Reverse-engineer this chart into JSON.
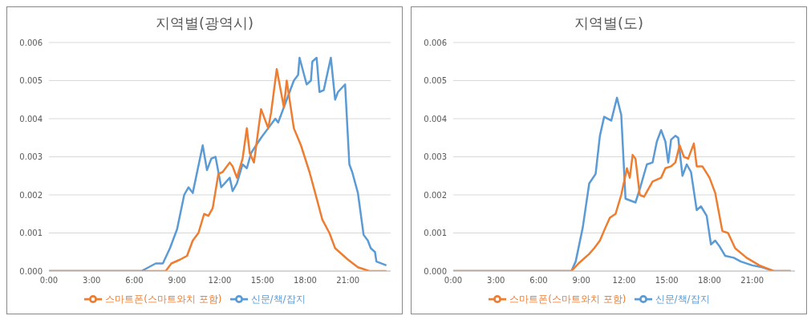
{
  "chart_data": [
    {
      "type": "line",
      "title": "지역별(광역시)",
      "legend": "bottom",
      "grid": "y",
      "marker": "none",
      "line_style": "solid",
      "xlim": [
        0,
        24
      ],
      "xticks": [
        {
          "value": 0,
          "label": "0:00"
        },
        {
          "value": 3,
          "label": "3:00"
        },
        {
          "value": 6,
          "label": "6:00"
        },
        {
          "value": 9,
          "label": "9:00"
        },
        {
          "value": 12,
          "label": "12:00"
        },
        {
          "value": 15,
          "label": "15:00"
        },
        {
          "value": 18,
          "label": "18:00"
        },
        {
          "value": 21,
          "label": "21:00"
        }
      ],
      "ylim": [
        0,
        0.006
      ],
      "yticks": [
        {
          "value": 0,
          "label": "0.000"
        },
        {
          "value": 0.001,
          "label": "0.001"
        },
        {
          "value": 0.002,
          "label": "0.002"
        },
        {
          "value": 0.003,
          "label": "0.003"
        },
        {
          "value": 0.004,
          "label": "0.004"
        },
        {
          "value": 0.005,
          "label": "0.005"
        },
        {
          "value": 0.006,
          "label": "0.006"
        }
      ],
      "series": [
        {
          "name": "신문/책/잡지",
          "color": "#5b9bd5",
          "x": [
            0,
            6.5,
            7,
            7.5,
            8,
            8.5,
            9,
            9.5,
            9.8,
            10.1,
            10.8,
            11.1,
            11.4,
            11.7,
            12.1,
            12.7,
            12.9,
            13.2,
            13.6,
            13.9,
            14.2,
            14.9,
            15.4,
            15.9,
            16.1,
            16.7,
            17.2,
            17.5,
            17.6,
            18.1,
            18.4,
            18.5,
            18.8,
            19,
            19.3,
            19.8,
            20.1,
            20.3,
            20.8,
            21.1,
            21.3,
            21.7,
            22.1,
            22.4,
            22.6,
            22.9,
            23,
            23.7
          ],
          "values": [
            0,
            0,
            0.0001,
            0.0002,
            0.0002,
            0.0006,
            0.0011,
            0.002,
            0.0022,
            0.00205,
            0.0033,
            0.00265,
            0.00295,
            0.003,
            0.0022,
            0.00245,
            0.0021,
            0.0023,
            0.0028,
            0.0027,
            0.0031,
            0.0035,
            0.00375,
            0.004,
            0.0039,
            0.0045,
            0.005,
            0.00515,
            0.0056,
            0.0049,
            0.005,
            0.0055,
            0.0056,
            0.0047,
            0.00475,
            0.0056,
            0.0045,
            0.0047,
            0.0049,
            0.0028,
            0.0026,
            0.00205,
            0.00095,
            0.0008,
            0.0006,
            0.0005,
            0.00025,
            0.00015
          ]
        },
        {
          "name": "스마트폰(스마트와치 포함)",
          "color": "#ed7d31",
          "x": [
            0,
            7.4,
            8.2,
            8.6,
            9.2,
            9.7,
            10.1,
            10.5,
            10.9,
            11.2,
            11.5,
            11.9,
            12.2,
            12.7,
            12.9,
            13.2,
            13.6,
            13.9,
            14.1,
            14.4,
            14.9,
            15.4,
            15.6,
            16,
            16.5,
            16.7,
            17.2,
            17.7,
            18.3,
            18.7,
            19.2,
            19.7,
            20.1,
            21,
            21.7,
            22.5,
            23.7
          ],
          "values": [
            0,
            0,
            0,
            0.0002,
            0.0003,
            0.0004,
            0.0008,
            0.001,
            0.0015,
            0.00145,
            0.00165,
            0.00255,
            0.0026,
            0.00285,
            0.00275,
            0.00245,
            0.00295,
            0.00375,
            0.0031,
            0.00285,
            0.00425,
            0.00375,
            0.00415,
            0.0053,
            0.0043,
            0.005,
            0.00375,
            0.0033,
            0.0026,
            0.00205,
            0.00135,
            0.001,
            0.0006,
            0.0003,
            0.0001,
            0,
            0
          ]
        }
      ]
    },
    {
      "type": "line",
      "title": "지역별(도)",
      "legend": "bottom",
      "grid": "y",
      "marker": "none",
      "line_style": "solid",
      "xlim": [
        0,
        24
      ],
      "xticks": [
        {
          "value": 0,
          "label": "0:00"
        },
        {
          "value": 3,
          "label": "3:00"
        },
        {
          "value": 6,
          "label": "6:00"
        },
        {
          "value": 9,
          "label": "9:00"
        },
        {
          "value": 12,
          "label": "12:00"
        },
        {
          "value": 15,
          "label": "15:00"
        },
        {
          "value": 18,
          "label": "18:00"
        },
        {
          "value": 21,
          "label": "21:00"
        }
      ],
      "ylim": [
        0,
        0.006
      ],
      "yticks": [
        {
          "value": 0,
          "label": "0.000"
        },
        {
          "value": 0.001,
          "label": "0.001"
        },
        {
          "value": 0.002,
          "label": "0.002"
        },
        {
          "value": 0.003,
          "label": "0.003"
        },
        {
          "value": 0.004,
          "label": "0.004"
        },
        {
          "value": 0.005,
          "label": "0.005"
        },
        {
          "value": 0.006,
          "label": "0.006"
        }
      ],
      "series": [
        {
          "name": "신문/책/잡지",
          "color": "#5b9bd5",
          "x": [
            0,
            8.3,
            8.6,
            9.1,
            9.55,
            10,
            10.3,
            10.6,
            11.1,
            11.5,
            11.8,
            12.1,
            12.8,
            13.1,
            13.6,
            14,
            14.3,
            14.6,
            14.9,
            15.1,
            15.3,
            15.6,
            15.8,
            16.1,
            16.4,
            16.7,
            17.1,
            17.4,
            17.8,
            18.1,
            18.4,
            18.7,
            19.1,
            19.7,
            20.2,
            21,
            21.7,
            22.5,
            23.7
          ],
          "values": [
            0,
            0,
            0.00025,
            0.00115,
            0.0023,
            0.00255,
            0.00355,
            0.00405,
            0.00395,
            0.00455,
            0.0041,
            0.0019,
            0.0018,
            0.00215,
            0.0028,
            0.00285,
            0.0034,
            0.0037,
            0.0034,
            0.00285,
            0.00345,
            0.00355,
            0.0035,
            0.0025,
            0.0028,
            0.0026,
            0.0016,
            0.0017,
            0.00145,
            0.0007,
            0.0008,
            0.00065,
            0.0004,
            0.00035,
            0.00025,
            0.00015,
            0.0001,
            0,
            0
          ]
        },
        {
          "name": "스마트폰(스마트와치 포함)",
          "color": "#ed7d31",
          "x": [
            0,
            7.1,
            8.3,
            8.8,
            9.55,
            9.9,
            10.3,
            10.7,
            11,
            11.4,
            11.8,
            12.2,
            12.4,
            12.6,
            12.8,
            13.1,
            13.4,
            14,
            14.6,
            14.9,
            15.3,
            15.6,
            15.9,
            16.2,
            16.5,
            16.9,
            17.1,
            17.5,
            18,
            18.4,
            18.9,
            19.3,
            19.8,
            20.6,
            21.5,
            22.5,
            23.7
          ],
          "values": [
            0,
            0,
            0,
            0.0002,
            0.00045,
            0.0006,
            0.0008,
            0.00115,
            0.0014,
            0.0015,
            0.002,
            0.0027,
            0.00245,
            0.00305,
            0.00295,
            0.002,
            0.00195,
            0.00235,
            0.00245,
            0.0027,
            0.00275,
            0.00285,
            0.0033,
            0.003,
            0.00295,
            0.00335,
            0.00275,
            0.00275,
            0.00245,
            0.00205,
            0.00105,
            0.001,
            0.0006,
            0.00035,
            0.00015,
            0,
            0
          ]
        }
      ]
    }
  ]
}
